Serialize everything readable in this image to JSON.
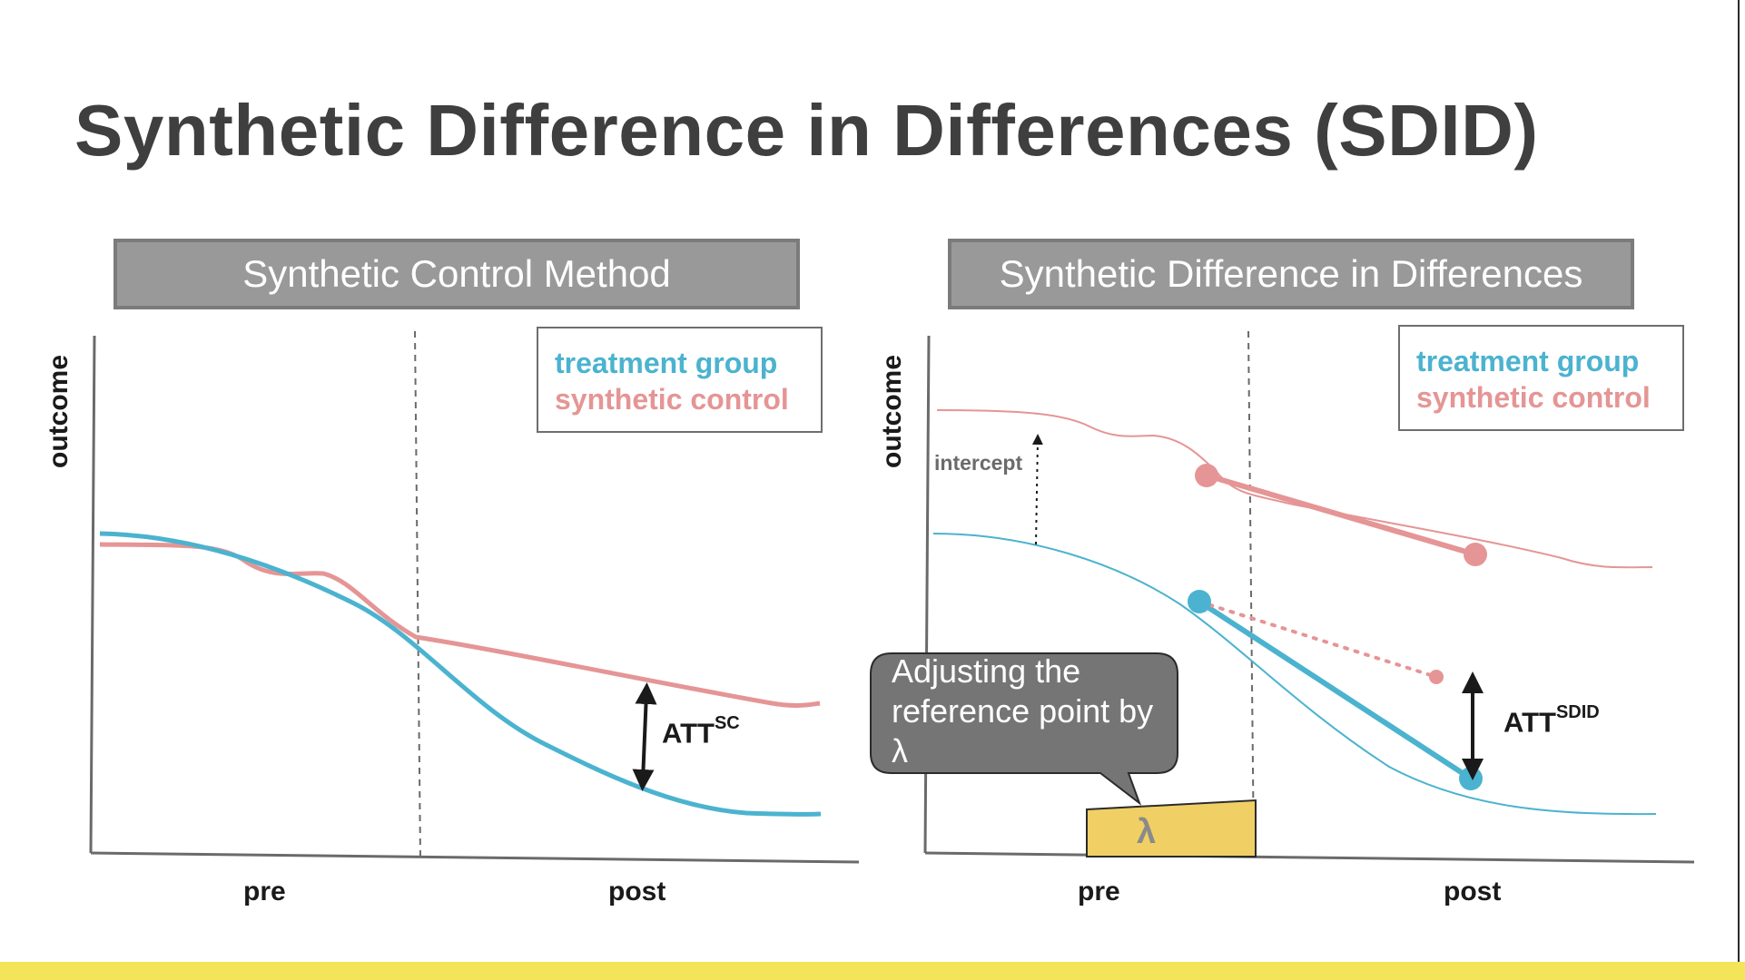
{
  "title": "Synthetic Difference in Differences (SDID)",
  "panels": {
    "left": {
      "header": "Synthetic Control Method",
      "legend": {
        "treatment": "treatment group",
        "control": "synthetic control"
      },
      "ylabel": "outcome",
      "xlabels": [
        "pre",
        "post"
      ],
      "att": {
        "base": "ATT",
        "sup": "SC"
      }
    },
    "right": {
      "header": "Synthetic Difference in Differences",
      "legend": {
        "treatment": "treatment group",
        "control": "synthetic control"
      },
      "ylabel": "outcome",
      "xlabels": [
        "pre",
        "post"
      ],
      "intercept_label": "intercept",
      "att": {
        "base": "ATT",
        "sup": "SDID"
      },
      "callout": "Adjusting the reference point by λ",
      "lambda": "λ"
    }
  },
  "colors": {
    "treatment": "#4bb3cf",
    "control": "#e59595",
    "header_bg": "#999999",
    "callout_bg": "#757575",
    "lambda_box": "#f0cf65",
    "bottom_bar": "#f3e45a"
  }
}
